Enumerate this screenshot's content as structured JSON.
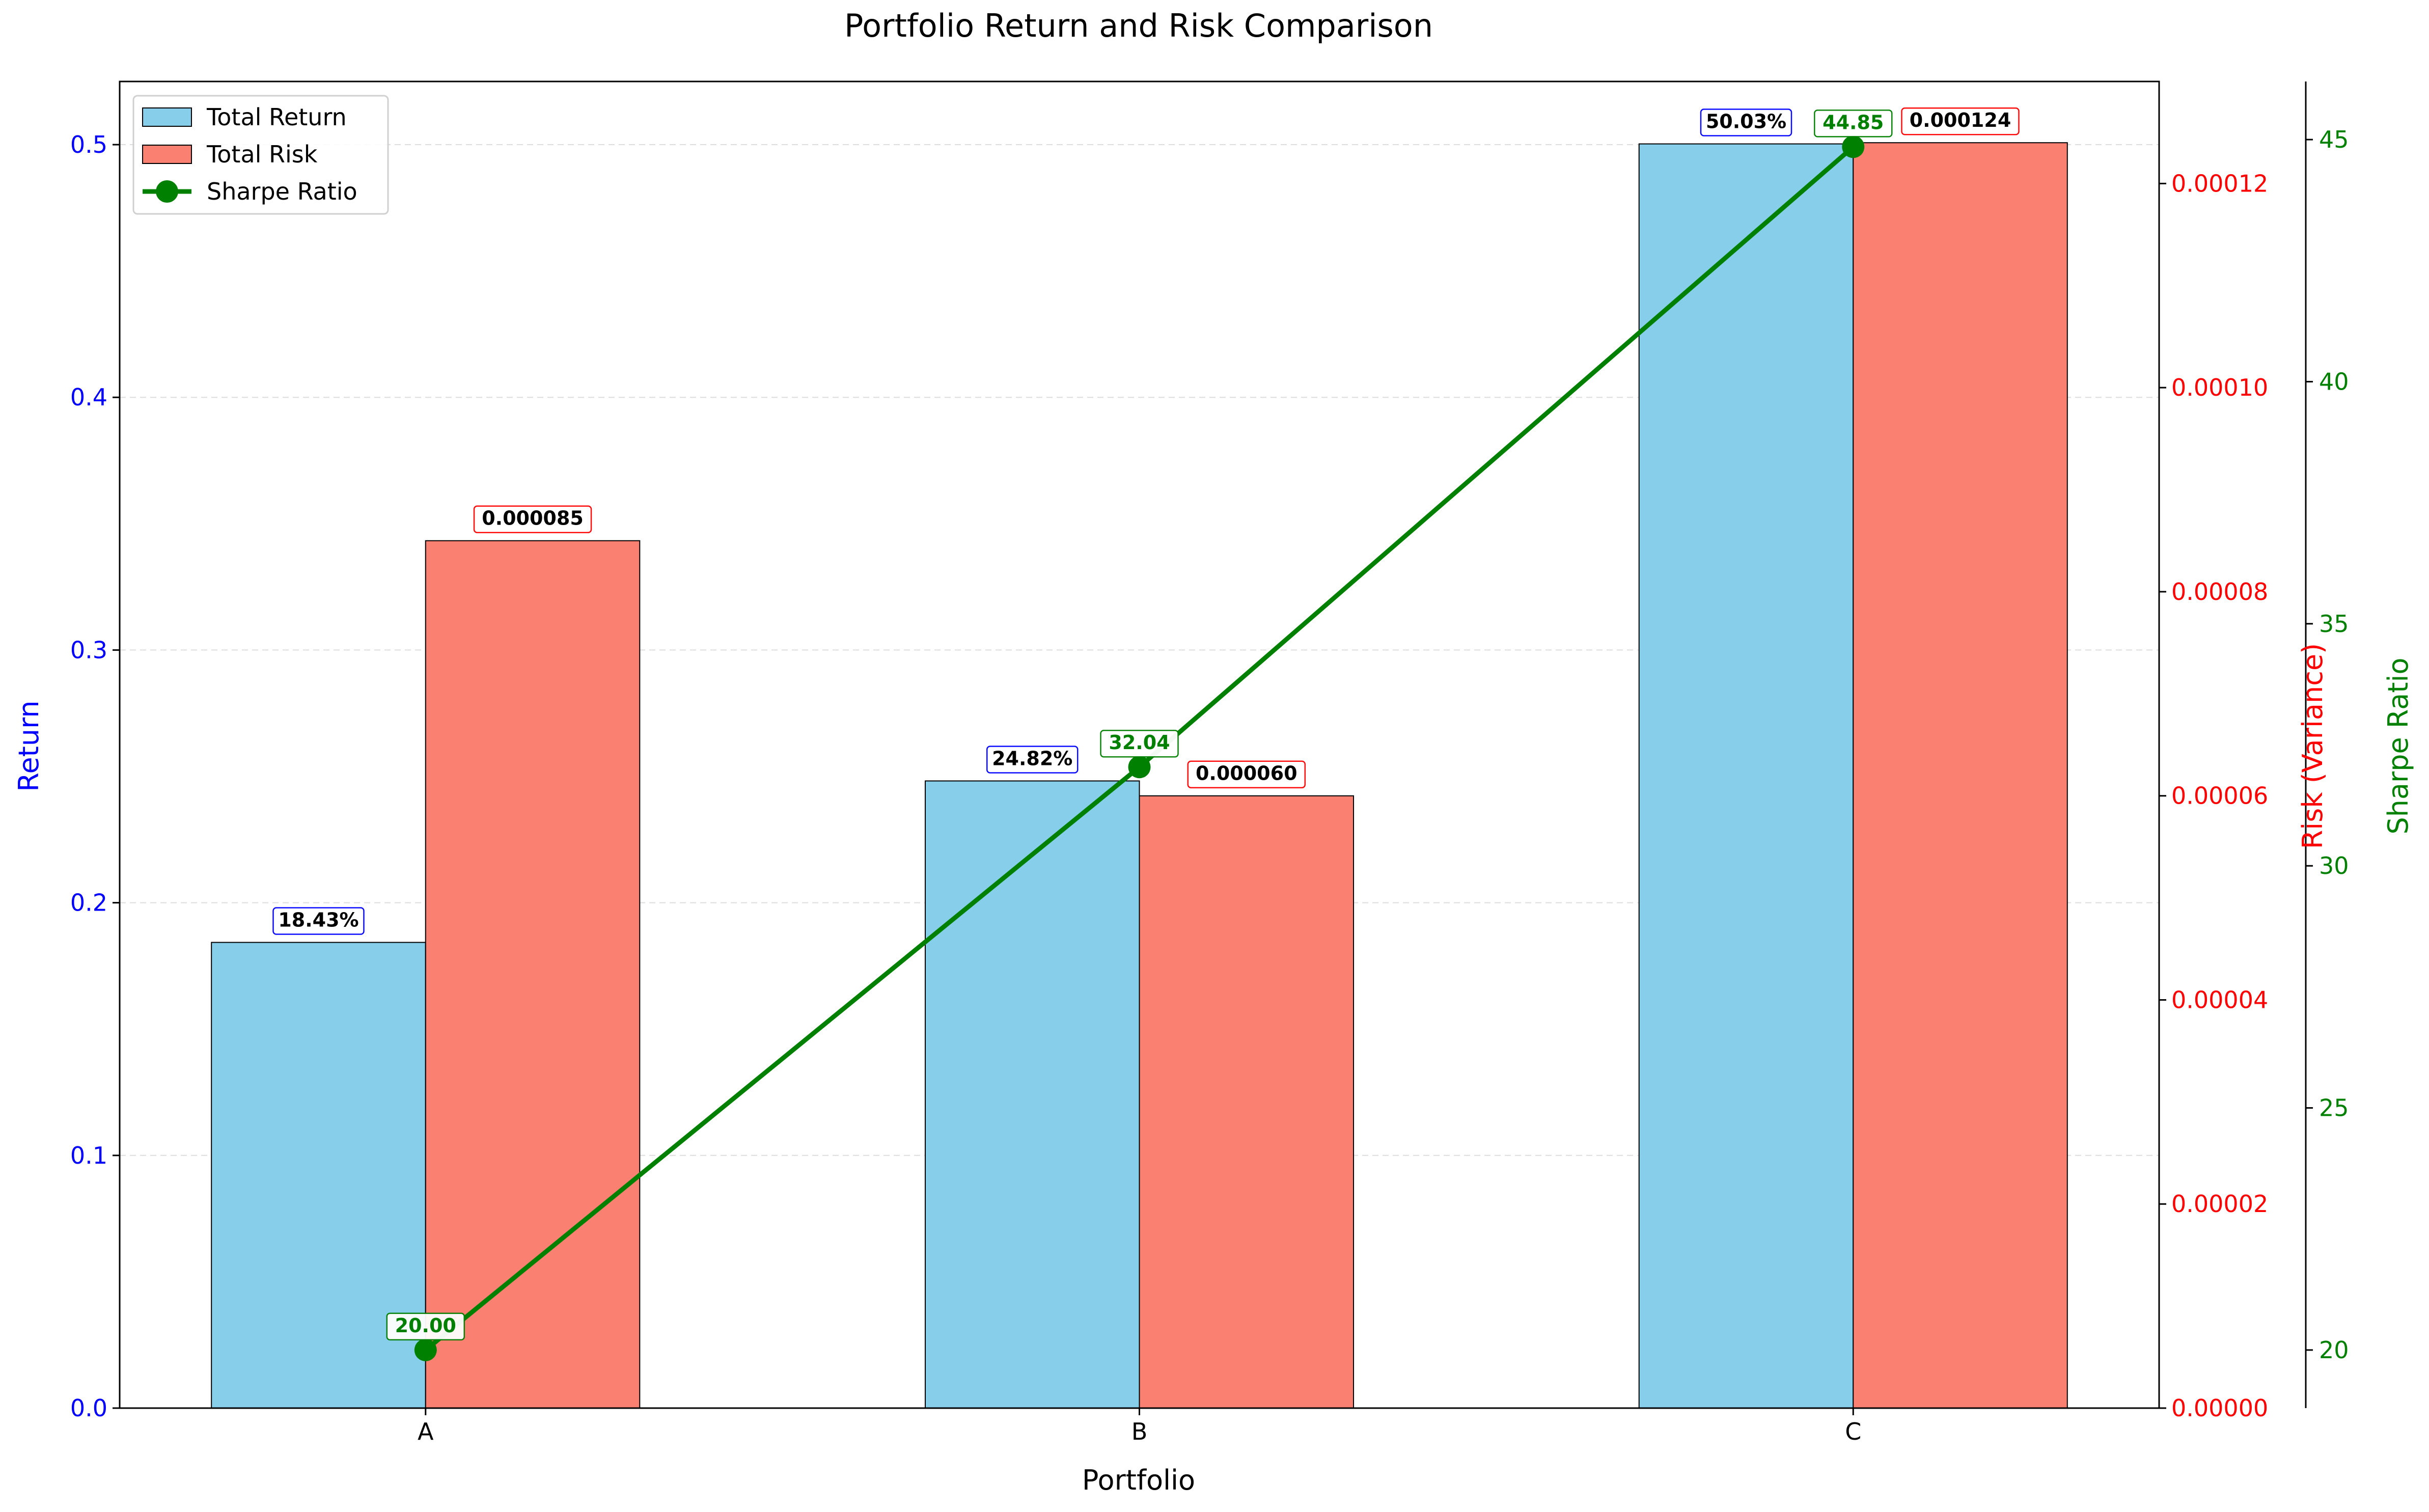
{
  "chart_data": {
    "type": "bar",
    "title": "Portfolio Return and Risk Comparison",
    "xlabel": "Portfolio",
    "ylabel_left": "Return",
    "ylabel_right1": "Risk (Variance)",
    "ylabel_right2": "Sharpe Ratio",
    "categories": [
      "A",
      "B",
      "C"
    ],
    "series": [
      {
        "name": "Total Return",
        "kind": "bar",
        "axis": "left",
        "color": "#87CEEB",
        "values": [
          0.1843,
          0.2482,
          0.5003
        ],
        "labels": [
          "18.43%",
          "24.82%",
          "50.03%"
        ]
      },
      {
        "name": "Total Risk",
        "kind": "bar",
        "axis": "right1",
        "color": "#FA8072",
        "values": [
          8.5e-05,
          6e-05,
          0.000124
        ],
        "labels": [
          "0.000085",
          "0.000060",
          "0.000124"
        ]
      },
      {
        "name": "Sharpe Ratio",
        "kind": "line",
        "axis": "right2",
        "color": "#008000",
        "values": [
          20.0,
          32.04,
          44.85
        ],
        "labels": [
          "20.00",
          "32.04",
          "44.85"
        ]
      }
    ],
    "ylim_left": [
      0,
      0.525
    ],
    "ylim_right1": [
      0,
      0.00013
    ],
    "ylim_right2": [
      18.8,
      46.2
    ],
    "yticks_left": [
      "0.0",
      "0.1",
      "0.2",
      "0.3",
      "0.4",
      "0.5"
    ],
    "yticks_right1": [
      "0.00000",
      "0.00002",
      "0.00004",
      "0.00006",
      "0.00008",
      "0.00010",
      "0.00012"
    ],
    "yticks_right2": [
      "20",
      "25",
      "30",
      "35",
      "40",
      "45"
    ],
    "grid": "y-dashed",
    "legend_position": "top-left",
    "axis_colors": {
      "left": "#0000FF",
      "right1": "#FF0000",
      "right2": "#008000"
    }
  }
}
